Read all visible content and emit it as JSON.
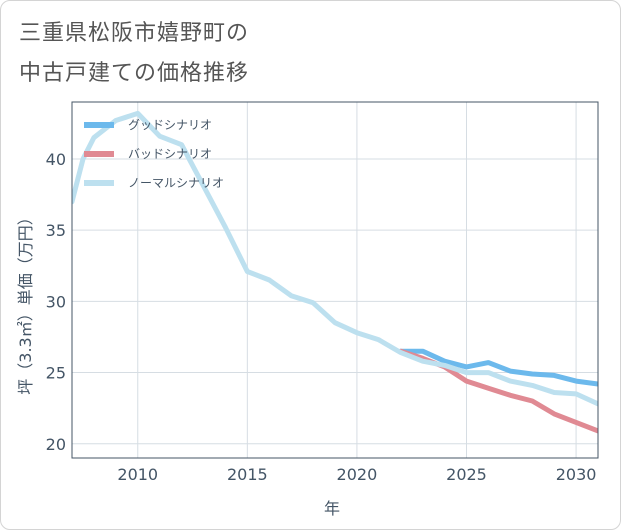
{
  "title": {
    "line1": "三重県松阪市嬉野町の",
    "line2": "中古戸建ての価格推移"
  },
  "chart_data": {
    "type": "line",
    "xlabel": "年",
    "ylabel": "坪（3.3㎡）単価（万円）",
    "xlim": [
      2007,
      2031
    ],
    "ylim": [
      19,
      44
    ],
    "xticks": [
      2010,
      2015,
      2020,
      2025,
      2030
    ],
    "yticks": [
      20,
      25,
      30,
      35,
      40
    ],
    "grid": true,
    "legend_position": "top-left",
    "series": [
      {
        "name": "グッドシナリオ",
        "color": "#6cb9ec",
        "x": [
          2022,
          2023,
          2024,
          2025,
          2026,
          2027,
          2028,
          2029,
          2030,
          2031
        ],
        "y": [
          26.5,
          26.5,
          25.8,
          25.4,
          25.7,
          25.1,
          24.9,
          24.8,
          24.4,
          24.2
        ]
      },
      {
        "name": "バッドシナリオ",
        "color": "#e08a93",
        "x": [
          2022,
          2023,
          2024,
          2025,
          2026,
          2027,
          2028,
          2029,
          2030,
          2031
        ],
        "y": [
          26.5,
          26.0,
          25.4,
          24.4,
          23.9,
          23.4,
          23.0,
          22.1,
          21.5,
          20.9
        ]
      },
      {
        "name": "ノーマルシナリオ",
        "color": "#bde0ef",
        "x": [
          2007,
          2007.5,
          2008,
          2009,
          2010,
          2011,
          2012,
          2013,
          2014,
          2015,
          2016,
          2017,
          2018,
          2019,
          2020,
          2021,
          2022,
          2023,
          2024,
          2025,
          2026,
          2027,
          2028,
          2029,
          2030,
          2031
        ],
        "y": [
          37.0,
          40.0,
          41.5,
          42.7,
          43.2,
          41.6,
          41.0,
          38.1,
          35.2,
          32.1,
          31.5,
          30.4,
          29.9,
          28.5,
          27.8,
          27.3,
          26.4,
          25.8,
          25.5,
          25.0,
          25.0,
          24.4,
          24.1,
          23.6,
          23.5,
          22.8
        ]
      }
    ]
  }
}
